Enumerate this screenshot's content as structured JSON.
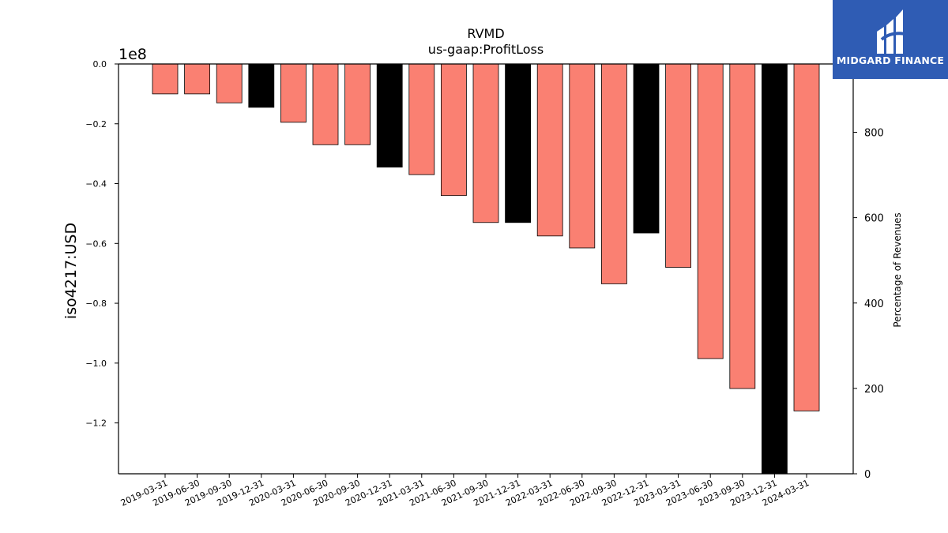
{
  "chart_data": {
    "type": "bar",
    "title": "RVMD",
    "subtitle": "us-gaap:ProfitLoss",
    "ylabel": "iso4217:USD",
    "y2label": "Percentage of Revenues",
    "offset_label": "1e8",
    "categories": [
      "2019-03-31",
      "2019-06-30",
      "2019-09-30",
      "2019-12-31",
      "2020-03-31",
      "2020-06-30",
      "2020-09-30",
      "2020-12-31",
      "2021-03-31",
      "2021-06-30",
      "2021-09-30",
      "2021-12-31",
      "2022-03-31",
      "2022-06-30",
      "2022-09-30",
      "2022-12-31",
      "2023-03-31",
      "2023-06-30",
      "2023-09-30",
      "2023-12-31",
      "2024-03-31"
    ],
    "values": [
      -10000000,
      -10000000,
      -13000000,
      -14500000,
      -19500000,
      -27000000,
      -27000000,
      -34500000,
      -37000000,
      -44000000,
      -53000000,
      -53000000,
      -57500000,
      -61500000,
      -73500000,
      -56500000,
      -68000000,
      -98500000,
      -108500000,
      -138000000,
      -116000000
    ],
    "bar_colors": [
      "#fa8072",
      "#fa8072",
      "#fa8072",
      "#000000",
      "#fa8072",
      "#fa8072",
      "#fa8072",
      "#000000",
      "#fa8072",
      "#fa8072",
      "#fa8072",
      "#000000",
      "#fa8072",
      "#fa8072",
      "#fa8072",
      "#000000",
      "#fa8072",
      "#fa8072",
      "#fa8072",
      "#000000",
      "#fa8072"
    ],
    "ylim": [
      -137000000,
      0
    ],
    "yticks": [
      0,
      -20000000,
      -40000000,
      -60000000,
      -80000000,
      -100000000,
      -120000000
    ],
    "ytick_labels": [
      "0.0",
      "−0.2",
      "−0.4",
      "−0.6",
      "−0.8",
      "−1.0",
      "−1.2"
    ],
    "y2lim": [
      0,
      960
    ],
    "y2ticks": [
      0,
      200,
      400,
      600,
      800
    ],
    "y2tick_labels": [
      "0",
      "200",
      "400",
      "600",
      "800"
    ],
    "grid": false,
    "legend": "none"
  },
  "logo": {
    "name": "MIDGARD FINANCE"
  }
}
